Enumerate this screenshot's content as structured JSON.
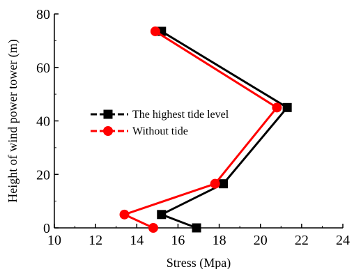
{
  "chart_data": {
    "type": "line",
    "title": "",
    "xlabel": "Stress (Mpa)",
    "ylabel": "Height of wind power tower (m)",
    "xlim": [
      10,
      24
    ],
    "ylim": [
      0,
      80
    ],
    "xticks": [
      10,
      12,
      14,
      16,
      18,
      20,
      22,
      24
    ],
    "yticks": [
      0,
      20,
      40,
      60,
      80
    ],
    "grid": false,
    "legend_position": "center-left",
    "series": [
      {
        "name": "The highest tide level",
        "color": "#000000",
        "marker": "square",
        "points": [
          {
            "x": 16.9,
            "y": 0
          },
          {
            "x": 15.2,
            "y": 5
          },
          {
            "x": 18.2,
            "y": 16.5
          },
          {
            "x": 21.3,
            "y": 45
          },
          {
            "x": 15.2,
            "y": 73.5
          }
        ]
      },
      {
        "name": "Without tide",
        "color": "#ff0000",
        "marker": "circle",
        "points": [
          {
            "x": 14.8,
            "y": 0
          },
          {
            "x": 13.4,
            "y": 5
          },
          {
            "x": 17.8,
            "y": 16.5
          },
          {
            "x": 20.8,
            "y": 45
          },
          {
            "x": 14.9,
            "y": 73.5
          }
        ]
      }
    ]
  }
}
